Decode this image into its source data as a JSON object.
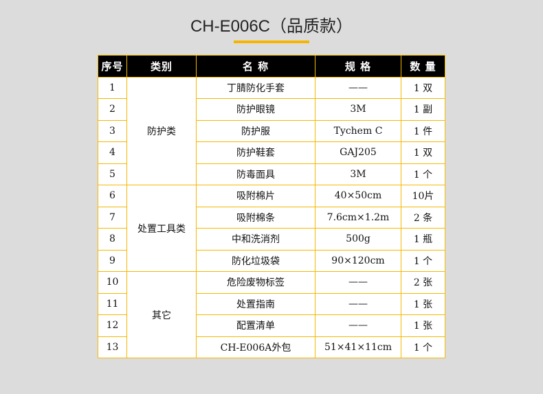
{
  "title": "CH-E006C（品质款）",
  "accent_color": "#f5b800",
  "headers": [
    "序号",
    "类别",
    "名 称",
    "规 格",
    "数 量"
  ],
  "groups": [
    {
      "label": "防护类",
      "span": 5
    },
    {
      "label": "处置工具类",
      "span": 4
    },
    {
      "label": "其它",
      "span": 4
    }
  ],
  "rows": [
    [
      "1",
      "丁腈防化手套",
      "——",
      "1 双"
    ],
    [
      "2",
      "防护眼镜",
      "3M",
      "1 副"
    ],
    [
      "3",
      "防护服",
      "Tychem C",
      "1 件"
    ],
    [
      "4",
      "防护鞋套",
      "GAJ205",
      "1 双"
    ],
    [
      "5",
      "防毒面具",
      "3M",
      "1 个"
    ],
    [
      "6",
      "吸附棉片",
      "40×50cm",
      "10片"
    ],
    [
      "7",
      "吸附棉条",
      "7.6cm×1.2m",
      "2 条"
    ],
    [
      "8",
      "中和洗消剂",
      "500g",
      "1 瓶"
    ],
    [
      "9",
      "防化垃圾袋",
      "90×120cm",
      "1 个"
    ],
    [
      "10",
      "危险废物标签",
      "——",
      "2 张"
    ],
    [
      "11",
      "处置指南",
      "——",
      "1 张"
    ],
    [
      "12",
      "配置清单",
      "——",
      "1 张"
    ],
    [
      "13",
      "CH-E006A外包",
      "51×41×11cm",
      "1 个"
    ]
  ]
}
